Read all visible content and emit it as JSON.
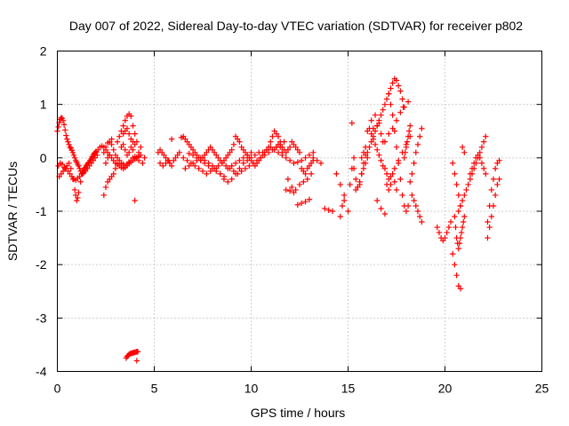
{
  "chart_data": {
    "type": "scatter",
    "title": "Day 007 of 2022, Sidereal Day-to-day VTEC variation (SDTVAR) for receiver p802",
    "xlabel": "GPS time / hours",
    "ylabel": "SDTVAR / TECUs",
    "xlim": [
      0,
      25
    ],
    "ylim": [
      -4,
      2
    ],
    "xticks": [
      0,
      5,
      10,
      15,
      20,
      25
    ],
    "yticks": [
      -4,
      -3,
      -2,
      -1,
      0,
      1,
      2
    ],
    "xtick_labels": [
      "0",
      "5",
      "10",
      "15",
      "20",
      "25"
    ],
    "ytick_labels": [
      "-4",
      "-3",
      "-2",
      "-1",
      "0",
      "1",
      "2"
    ],
    "grid": true,
    "marker": "+",
    "color": "#ff0000",
    "series": [
      {
        "name": "SDTVAR p802",
        "x": [
          0.0,
          0.05,
          0.1,
          0.15,
          0.2,
          0.25,
          0.3,
          0.35,
          0.4,
          0.45,
          0.5,
          0.55,
          0.6,
          0.65,
          0.7,
          0.75,
          0.8,
          0.85,
          0.9,
          0.95,
          1.0,
          1.05,
          1.1,
          1.15,
          1.2,
          1.25,
          1.3,
          1.35,
          1.4,
          1.45,
          1.5,
          1.55,
          1.6,
          1.65,
          1.7,
          1.75,
          1.8,
          1.85,
          1.9,
          1.95,
          2.0,
          0.05,
          0.15,
          0.25,
          0.35,
          0.45,
          0.55,
          0.65,
          0.75,
          0.85,
          0.95,
          1.05,
          1.15,
          1.25,
          1.35,
          1.45,
          1.55,
          1.65,
          1.75,
          1.85,
          1.95,
          2.05,
          0.1,
          0.2,
          0.3,
          0.4,
          0.5,
          0.6,
          0.7,
          0.8,
          0.9,
          0.95,
          1.0,
          1.05,
          1.1,
          1.2,
          1.3,
          1.4,
          1.5,
          1.6,
          1.7,
          1.8,
          1.9,
          2.0,
          2.1,
          2.2,
          2.3,
          2.4,
          2.5,
          2.6,
          2.7,
          2.8,
          2.9,
          3.0,
          3.1,
          3.2,
          3.3,
          3.4,
          3.5,
          3.6,
          3.7,
          3.8,
          3.9,
          4.0,
          4.1,
          4.2,
          4.3,
          4.4,
          4.5,
          2.4,
          2.5,
          2.6,
          2.7,
          2.8,
          2.9,
          3.0,
          3.1,
          3.2,
          3.3,
          3.4,
          3.5,
          3.6,
          3.7,
          3.8,
          3.9,
          4.0,
          4.1,
          4.2,
          4.3,
          3.1,
          3.2,
          3.3,
          3.4,
          3.5,
          3.6,
          3.7,
          3.8,
          3.9,
          4.0,
          4.1,
          4.2,
          3.3,
          3.4,
          3.5,
          3.6,
          3.7,
          3.8,
          3.9,
          4.0,
          2.4,
          2.5,
          2.6,
          2.7,
          2.8,
          2.9,
          3.0,
          2.5,
          2.6,
          2.7,
          2.8,
          3.4,
          3.5,
          3.6,
          3.7,
          3.8,
          3.9,
          4.0,
          4.1,
          3.55,
          3.6,
          3.65,
          3.7,
          3.75,
          3.8,
          3.85,
          3.9,
          3.95,
          4.0,
          4.05,
          4.1,
          4.15,
          4.2,
          5.2,
          5.3,
          5.4,
          5.5,
          5.6,
          5.7,
          5.8,
          5.9,
          6.0,
          5.3,
          5.45,
          5.6,
          5.75,
          5.9,
          6.4,
          6.5,
          6.6,
          6.7,
          6.8,
          6.9,
          7.0,
          7.1,
          7.2,
          7.3,
          7.4,
          7.5,
          7.6,
          7.7,
          7.8,
          7.9,
          8.0,
          8.1,
          8.2,
          8.3,
          8.4,
          8.5,
          8.6,
          8.7,
          8.8,
          8.9,
          9.0,
          9.1,
          9.2,
          9.3,
          9.4,
          9.5,
          9.6,
          9.7,
          9.8,
          9.9,
          10.0,
          10.1,
          10.2,
          10.3,
          10.4,
          10.5,
          10.6,
          10.7,
          10.8,
          10.9,
          11.0,
          11.1,
          11.2,
          11.3,
          11.4,
          11.5,
          11.6,
          11.7,
          11.8,
          11.9,
          12.0,
          12.1,
          12.2,
          12.3,
          12.4,
          12.5,
          12.6,
          12.7,
          12.8,
          12.9,
          13.0,
          13.1,
          13.2,
          6.5,
          6.7,
          6.9,
          7.1,
          7.3,
          7.5,
          7.7,
          7.9,
          8.1,
          8.3,
          8.5,
          8.7,
          8.9,
          9.1,
          9.3,
          9.5,
          9.7,
          9.9,
          10.1,
          10.3,
          10.5,
          10.7,
          10.9,
          11.1,
          11.3,
          11.5,
          11.7,
          11.9,
          12.1,
          12.3,
          12.5,
          12.7,
          12.9,
          13.1,
          6.6,
          6.8,
          7.0,
          7.2,
          7.4,
          7.6,
          7.8,
          8.0,
          8.2,
          8.4,
          8.6,
          8.8,
          9.0,
          9.2,
          9.4,
          9.6,
          9.8,
          10.0,
          10.2,
          10.4,
          10.6,
          10.8,
          11.0,
          11.2,
          11.4,
          11.6,
          11.8,
          12.0,
          12.2,
          12.4,
          12.6,
          12.8,
          13.0,
          13.2,
          6.8,
          7.0,
          7.2,
          7.4,
          7.6,
          7.8,
          8.0,
          8.2,
          8.4,
          8.6,
          8.8,
          9.0,
          9.2,
          9.4,
          9.6,
          9.8,
          10.0,
          11.8,
          12.0,
          12.2,
          12.4,
          12.6,
          12.8,
          13.0,
          6.1,
          6.2,
          6.3,
          11.3,
          11.4,
          11.5,
          11.6,
          13.2,
          13.4,
          13.6,
          13.8,
          14.0,
          14.2,
          14.4,
          14.6,
          14.8,
          15.0,
          14.6,
          14.7,
          14.8,
          15.1,
          15.2,
          15.3,
          15.4,
          15.5,
          15.6,
          15.7,
          15.8,
          15.9,
          16.0,
          15.2,
          15.3,
          15.4,
          15.5,
          15.6,
          15.7,
          15.8,
          15.9,
          15.7,
          15.8,
          15.9,
          16.0,
          16.0,
          16.1,
          16.2,
          16.3,
          16.4,
          16.5,
          16.6,
          16.7,
          16.8,
          16.9,
          17.0,
          17.1,
          17.2,
          17.3,
          17.4,
          17.5,
          17.6,
          17.7,
          17.8,
          17.9,
          18.0,
          18.1,
          18.2,
          18.3,
          18.4,
          18.5,
          18.6,
          18.7,
          18.8,
          16.2,
          16.4,
          16.6,
          16.8,
          17.0,
          17.2,
          17.4,
          17.6,
          17.8,
          18.0,
          18.2,
          16.3,
          16.5,
          16.7,
          16.9,
          17.1,
          17.3,
          17.5,
          17.7,
          17.9,
          18.1,
          17.1,
          17.2,
          17.3,
          17.4,
          17.5,
          17.6,
          17.7,
          17.8,
          17.85,
          17.9,
          17.95,
          18.0,
          18.05,
          18.1,
          18.15,
          18.2,
          16.1,
          16.2,
          16.3,
          16.4,
          16.5,
          16.6,
          16.7,
          16.8,
          16.9,
          17.0,
          17.1,
          17.2,
          17.3,
          17.4,
          17.5,
          16.5,
          16.7,
          16.9,
          17.1,
          18.3,
          18.4,
          18.5,
          18.6,
          18.7,
          18.8,
          19.6,
          19.7,
          19.8,
          19.9,
          20.0,
          20.1,
          20.2,
          20.3,
          20.4,
          20.5,
          20.6,
          20.7,
          20.8,
          20.9,
          21.0,
          20.4,
          20.5,
          20.6,
          20.7,
          20.8,
          20.5,
          20.55,
          20.6,
          20.65,
          20.7,
          20.75,
          20.8,
          20.85,
          20.9,
          20.95,
          21.0,
          20.7,
          20.8,
          20.9,
          21.0,
          21.1,
          21.2,
          21.3,
          21.4,
          21.5,
          21.6,
          21.7,
          21.8,
          21.9,
          22.0,
          22.1,
          22.2,
          22.3,
          22.4,
          22.5,
          22.6,
          22.7,
          22.8,
          21.3,
          21.4,
          21.5,
          21.6,
          21.7,
          21.8,
          21.9,
          22.0,
          22.1,
          22.2,
          22.3,
          22.4,
          22.5,
          22.6,
          22.7,
          22.8,
          21.5,
          21.7,
          21.9,
          22.1,
          22.3,
          22.5,
          22.7
        ]
      }
    ]
  }
}
